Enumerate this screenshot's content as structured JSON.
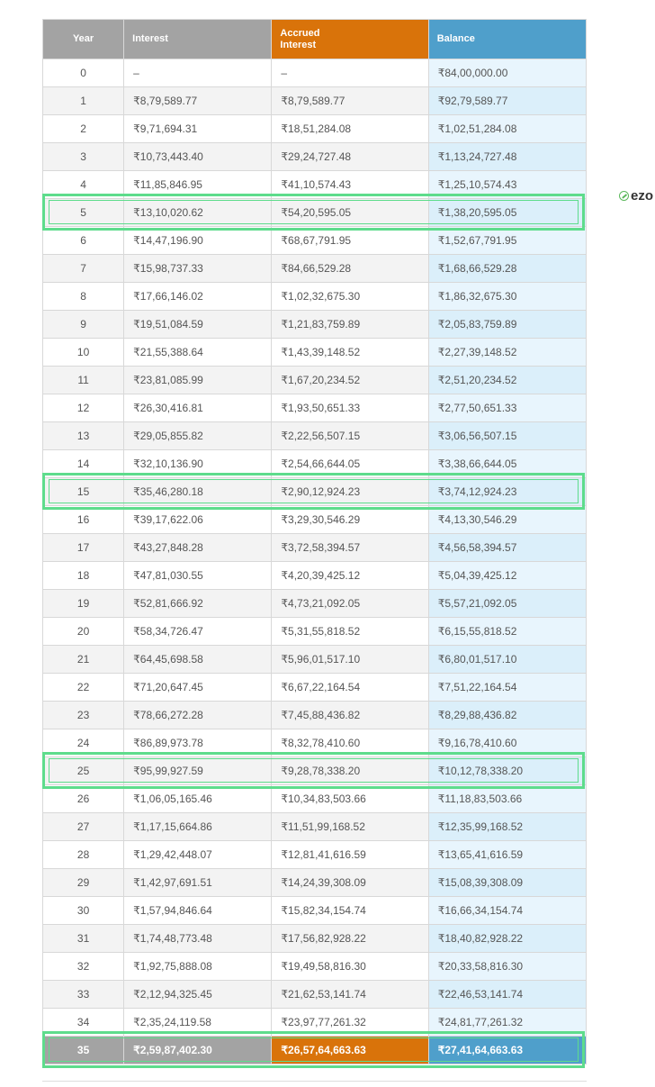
{
  "colors": {
    "year_header": "#a3a3a3",
    "interest_header": "#a3a3a3",
    "accrued_header": "#d9730a",
    "balance_header": "#4f9fcb",
    "row_odd": "#ffffff",
    "row_even": "#f3f3f3",
    "balance_odd": "#e8f5fd",
    "balance_even": "#dbeffa",
    "highlight": "#5edc8c"
  },
  "table": {
    "headers": {
      "year": "Year",
      "interest": "Interest",
      "accrued_line1": "Accrued",
      "accrued_line2": "Interest",
      "balance": "Balance"
    },
    "rows": [
      {
        "year": "0",
        "interest": "–",
        "accrued": "–",
        "balance": "₹84,00,000.00"
      },
      {
        "year": "1",
        "interest": "₹8,79,589.77",
        "accrued": "₹8,79,589.77",
        "balance": "₹92,79,589.77"
      },
      {
        "year": "2",
        "interest": "₹9,71,694.31",
        "accrued": "₹18,51,284.08",
        "balance": "₹1,02,51,284.08"
      },
      {
        "year": "3",
        "interest": "₹10,73,443.40",
        "accrued": "₹29,24,727.48",
        "balance": "₹1,13,24,727.48"
      },
      {
        "year": "4",
        "interest": "₹11,85,846.95",
        "accrued": "₹41,10,574.43",
        "balance": "₹1,25,10,574.43"
      },
      {
        "year": "5",
        "interest": "₹13,10,020.62",
        "accrued": "₹54,20,595.05",
        "balance": "₹1,38,20,595.05"
      },
      {
        "year": "6",
        "interest": "₹14,47,196.90",
        "accrued": "₹68,67,791.95",
        "balance": "₹1,52,67,791.95"
      },
      {
        "year": "7",
        "interest": "₹15,98,737.33",
        "accrued": "₹84,66,529.28",
        "balance": "₹1,68,66,529.28"
      },
      {
        "year": "8",
        "interest": "₹17,66,146.02",
        "accrued": "₹1,02,32,675.30",
        "balance": "₹1,86,32,675.30"
      },
      {
        "year": "9",
        "interest": "₹19,51,084.59",
        "accrued": "₹1,21,83,759.89",
        "balance": "₹2,05,83,759.89"
      },
      {
        "year": "10",
        "interest": "₹21,55,388.64",
        "accrued": "₹1,43,39,148.52",
        "balance": "₹2,27,39,148.52"
      },
      {
        "year": "11",
        "interest": "₹23,81,085.99",
        "accrued": "₹1,67,20,234.52",
        "balance": "₹2,51,20,234.52"
      },
      {
        "year": "12",
        "interest": "₹26,30,416.81",
        "accrued": "₹1,93,50,651.33",
        "balance": "₹2,77,50,651.33"
      },
      {
        "year": "13",
        "interest": "₹29,05,855.82",
        "accrued": "₹2,22,56,507.15",
        "balance": "₹3,06,56,507.15"
      },
      {
        "year": "14",
        "interest": "₹32,10,136.90",
        "accrued": "₹2,54,66,644.05",
        "balance": "₹3,38,66,644.05"
      },
      {
        "year": "15",
        "interest": "₹35,46,280.18",
        "accrued": "₹2,90,12,924.23",
        "balance": "₹3,74,12,924.23"
      },
      {
        "year": "16",
        "interest": "₹39,17,622.06",
        "accrued": "₹3,29,30,546.29",
        "balance": "₹4,13,30,546.29"
      },
      {
        "year": "17",
        "interest": "₹43,27,848.28",
        "accrued": "₹3,72,58,394.57",
        "balance": "₹4,56,58,394.57"
      },
      {
        "year": "18",
        "interest": "₹47,81,030.55",
        "accrued": "₹4,20,39,425.12",
        "balance": "₹5,04,39,425.12"
      },
      {
        "year": "19",
        "interest": "₹52,81,666.92",
        "accrued": "₹4,73,21,092.05",
        "balance": "₹5,57,21,092.05"
      },
      {
        "year": "20",
        "interest": "₹58,34,726.47",
        "accrued": "₹5,31,55,818.52",
        "balance": "₹6,15,55,818.52"
      },
      {
        "year": "21",
        "interest": "₹64,45,698.58",
        "accrued": "₹5,96,01,517.10",
        "balance": "₹6,80,01,517.10"
      },
      {
        "year": "22",
        "interest": "₹71,20,647.45",
        "accrued": "₹6,67,22,164.54",
        "balance": "₹7,51,22,164.54"
      },
      {
        "year": "23",
        "interest": "₹78,66,272.28",
        "accrued": "₹7,45,88,436.82",
        "balance": "₹8,29,88,436.82"
      },
      {
        "year": "24",
        "interest": "₹86,89,973.78",
        "accrued": "₹8,32,78,410.60",
        "balance": "₹9,16,78,410.60"
      },
      {
        "year": "25",
        "interest": "₹95,99,927.59",
        "accrued": "₹9,28,78,338.20",
        "balance": "₹10,12,78,338.20"
      },
      {
        "year": "26",
        "interest": "₹1,06,05,165.46",
        "accrued": "₹10,34,83,503.66",
        "balance": "₹11,18,83,503.66"
      },
      {
        "year": "27",
        "interest": "₹1,17,15,664.86",
        "accrued": "₹11,51,99,168.52",
        "balance": "₹12,35,99,168.52"
      },
      {
        "year": "28",
        "interest": "₹1,29,42,448.07",
        "accrued": "₹12,81,41,616.59",
        "balance": "₹13,65,41,616.59"
      },
      {
        "year": "29",
        "interest": "₹1,42,97,691.51",
        "accrued": "₹14,24,39,308.09",
        "balance": "₹15,08,39,308.09"
      },
      {
        "year": "30",
        "interest": "₹1,57,94,846.64",
        "accrued": "₹15,82,34,154.74",
        "balance": "₹16,66,34,154.74"
      },
      {
        "year": "31",
        "interest": "₹1,74,48,773.48",
        "accrued": "₹17,56,82,928.22",
        "balance": "₹18,40,82,928.22"
      },
      {
        "year": "32",
        "interest": "₹1,92,75,888.08",
        "accrued": "₹19,49,58,816.30",
        "balance": "₹20,33,58,816.30"
      },
      {
        "year": "33",
        "interest": "₹2,12,94,325.45",
        "accrued": "₹21,62,53,141.74",
        "balance": "₹22,46,53,141.74"
      },
      {
        "year": "34",
        "interest": "₹2,35,24,119.58",
        "accrued": "₹23,97,77,261.32",
        "balance": "₹24,81,77,261.32"
      },
      {
        "year": "35",
        "interest": "₹2,59,87,402.30",
        "accrued": "₹26,57,64,663.63",
        "balance": "₹27,41,64,663.63"
      }
    ],
    "highlighted_years": [
      "5",
      "15",
      "25",
      "35"
    ]
  },
  "ad": {
    "brand_text": "ezo",
    "icon": "ezoic-leaf-icon"
  }
}
